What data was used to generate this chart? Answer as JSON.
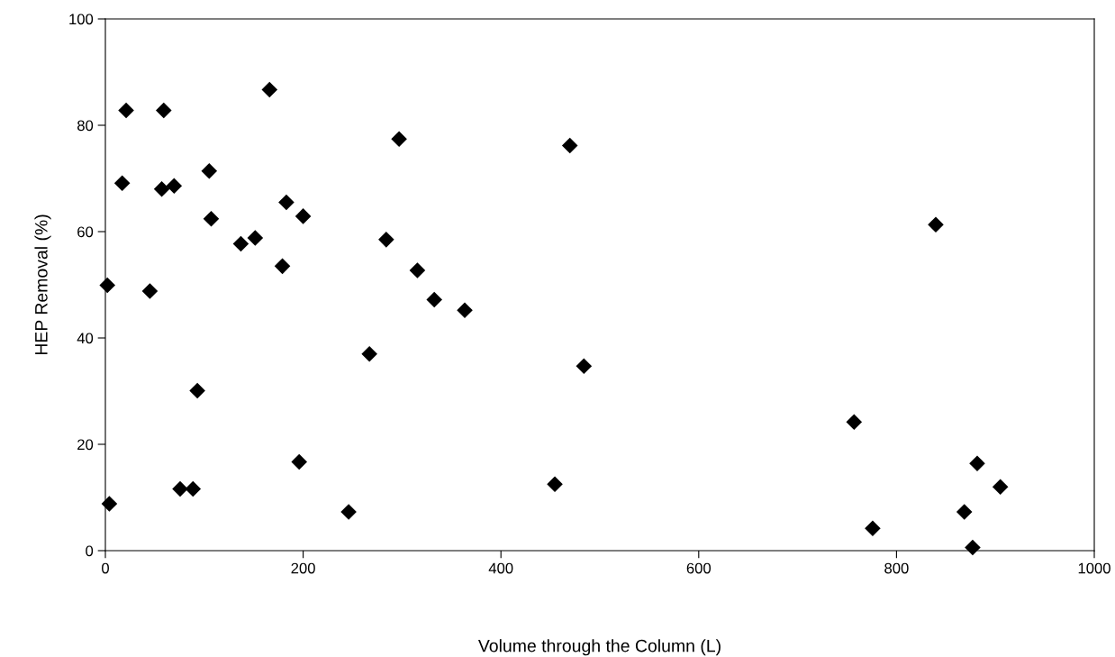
{
  "chart_data": {
    "type": "scatter",
    "xlabel": "Volume through the Column (L)",
    "ylabel": "HEP Removal (%)",
    "x": [
      2,
      4,
      17,
      21,
      45,
      57,
      59,
      69.5,
      75.6,
      88.6,
      93,
      105,
      107,
      137,
      151.5,
      166,
      179,
      183,
      196,
      200,
      246,
      267,
      284,
      297,
      315.5,
      332.6,
      363.4,
      469.7,
      483.9,
      454.5,
      839.7,
      757.1,
      881.6,
      905,
      868.6,
      775.9,
      877
    ],
    "values": [
      49.9,
      8.8,
      69.1,
      82.8,
      48.8,
      68.0,
      82.8,
      68.6,
      11.6,
      11.6,
      30.1,
      71.4,
      62.4,
      57.7,
      58.8,
      86.7,
      53.5,
      65.5,
      16.7,
      62.9,
      7.3,
      37.0,
      58.5,
      77.4,
      52.7,
      47.2,
      45.2,
      76.2,
      34.7,
      12.5,
      61.3,
      24.2,
      16.4,
      12.0,
      7.3,
      4.2,
      0.6
    ],
    "color": "#000000",
    "marker": "diamond",
    "xlim": [
      0,
      1000
    ],
    "xticks": [
      0,
      200,
      400,
      600,
      800,
      1000
    ],
    "ylim": [
      0,
      100
    ],
    "yticks": [
      0,
      20,
      40,
      60,
      80,
      100
    ],
    "grid": false
  }
}
